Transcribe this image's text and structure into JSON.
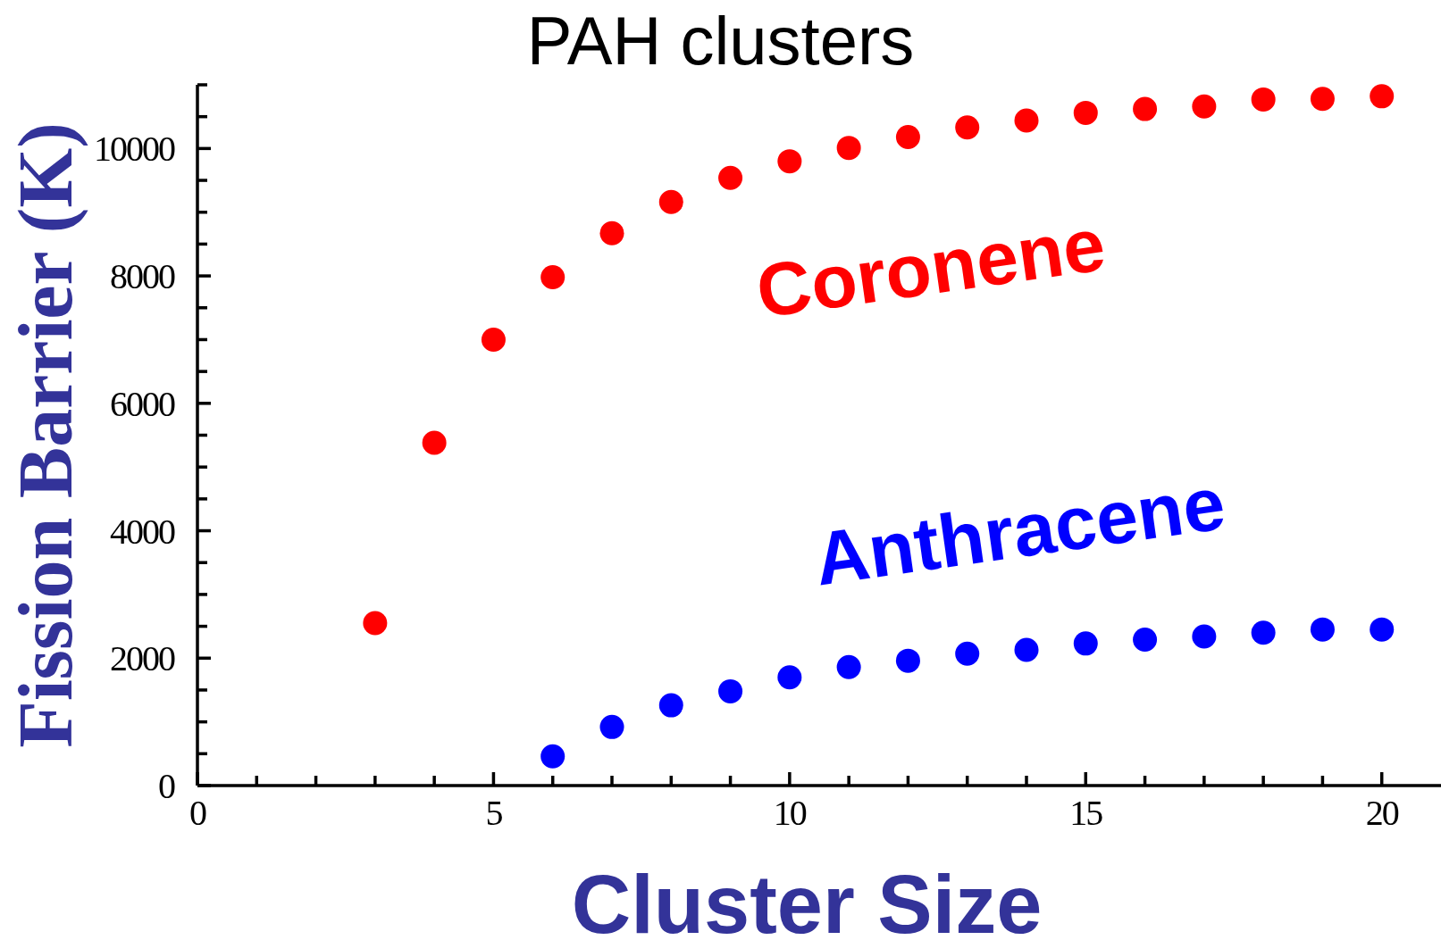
{
  "chart_data": {
    "type": "scatter",
    "title": "PAH clusters",
    "xlabel": "Cluster Size",
    "ylabel": "Fission Barrier (K)",
    "xlim": [
      0,
      21
    ],
    "xticks": [
      0,
      {
        "value": 1,
        "label": null
      },
      {
        "value": 2,
        "label": null
      },
      {
        "value": 3,
        "label": null
      },
      {
        "value": 4,
        "label": null
      },
      5,
      {
        "value": 6,
        "label": null
      },
      {
        "value": 7,
        "label": null
      },
      {
        "value": 8,
        "label": null
      },
      {
        "value": 9,
        "label": null
      },
      10,
      {
        "value": 11,
        "label": null
      },
      {
        "value": 12,
        "label": null
      },
      {
        "value": 13,
        "label": null
      },
      {
        "value": 14,
        "label": null
      },
      15,
      {
        "value": 16,
        "label": null
      },
      {
        "value": 17,
        "label": null
      },
      {
        "value": 18,
        "label": null
      },
      {
        "value": 19,
        "label": null
      },
      20
    ],
    "ylim": [
      0,
      11000
    ],
    "yticks": [
      0,
      {
        "value": 500,
        "label": null
      },
      {
        "value": 1000,
        "label": null
      },
      {
        "value": 1500,
        "label": null
      },
      2000,
      {
        "value": 2500,
        "label": null
      },
      {
        "value": 3000,
        "label": null
      },
      {
        "value": 3500,
        "label": null
      },
      4000,
      {
        "value": 4500,
        "label": null
      },
      {
        "value": 5000,
        "label": null
      },
      {
        "value": 5500,
        "label": null
      },
      6000,
      {
        "value": 6500,
        "label": null
      },
      {
        "value": 7000,
        "label": null
      },
      {
        "value": 7500,
        "label": null
      },
      8000,
      {
        "value": 8500,
        "label": null
      },
      {
        "value": 9000,
        "label": null
      },
      {
        "value": 9500,
        "label": null
      },
      10000,
      {
        "value": 10500,
        "label": null
      },
      {
        "value": 11000,
        "label": null
      }
    ],
    "marker": "circle",
    "series": [
      {
        "name": "Coronene",
        "color": "#ff0000",
        "x": [
          3,
          4,
          5,
          6,
          7,
          8,
          9,
          10,
          11,
          12,
          13,
          14,
          15,
          16,
          17,
          18,
          19,
          20
        ],
        "values": [
          2550,
          5380,
          7000,
          7980,
          8670,
          9160,
          9540,
          9800,
          10010,
          10180,
          10330,
          10440,
          10560,
          10620,
          10660,
          10770,
          10780,
          10820
        ]
      },
      {
        "name": "Anthracene",
        "color": "#0000ff",
        "x": [
          6,
          7,
          8,
          9,
          10,
          11,
          12,
          13,
          14,
          15,
          16,
          17,
          18,
          19,
          20
        ],
        "values": [
          460,
          920,
          1260,
          1480,
          1700,
          1860,
          1960,
          2070,
          2130,
          2230,
          2290,
          2340,
          2400,
          2450,
          2450
        ]
      }
    ]
  }
}
